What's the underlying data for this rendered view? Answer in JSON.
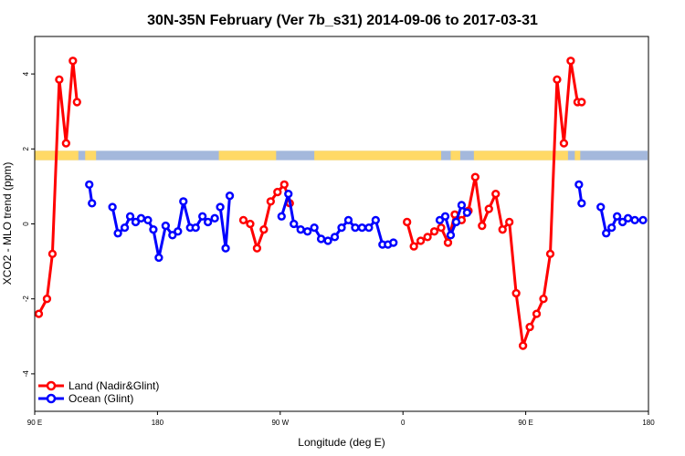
{
  "chart_data": {
    "type": "line",
    "title": "30N-35N February (Ver 7b_s31)   2014-09-06 to 2017-03-31",
    "xlabel": "Longitude (deg E)",
    "ylabel": "XCO2 - MLO trend (ppm)",
    "xlim": [
      90,
      540
    ],
    "ylim": [
      -5,
      5
    ],
    "x_ticks": [
      {
        "value": 90,
        "label": "90 E"
      },
      {
        "value": 180,
        "label": "180"
      },
      {
        "value": 270,
        "label": "90 W"
      },
      {
        "value": 360,
        "label": "0"
      },
      {
        "value": 450,
        "label": "90 E"
      },
      {
        "value": 540,
        "label": "180"
      }
    ],
    "y_ticks": [
      -4,
      -2,
      0,
      2,
      4
    ],
    "legend_position": "bottom-left",
    "land_fraction_band": {
      "y_range": [
        1.7,
        1.95
      ],
      "land_color": "#ffd966",
      "ocean_color": "#a4b8dc",
      "land_ranges": [
        [
          90,
          122
        ],
        [
          127,
          135
        ],
        [
          225,
          267
        ],
        [
          295,
          388
        ],
        [
          395,
          402
        ],
        [
          412,
          481
        ],
        [
          486,
          490
        ]
      ]
    },
    "series": [
      {
        "name": "Land (Nadir&Glint)",
        "color": "#ff0000",
        "segments": [
          {
            "x": [
              93,
              99,
              103,
              108,
              113,
              118,
              121
            ],
            "y": [
              -2.4,
              -2.0,
              -0.8,
              3.85,
              2.15,
              4.35,
              3.25
            ]
          },
          {
            "x": [
              243,
              248,
              253,
              258,
              263,
              268,
              273,
              277
            ],
            "y": [
              0.1,
              0.0,
              -0.65,
              -0.15,
              0.6,
              0.85,
              1.05,
              0.55
            ]
          },
          {
            "x": [
              363,
              368,
              373,
              378,
              383,
              388,
              393,
              398,
              403,
              408,
              413,
              418,
              423,
              428,
              433,
              438,
              443,
              448,
              453,
              458,
              463,
              468,
              473,
              478,
              483,
              488,
              491
            ],
            "y": [
              0.05,
              -0.6,
              -0.45,
              -0.35,
              -0.2,
              -0.1,
              -0.5,
              0.25,
              0.1,
              0.35,
              1.25,
              -0.05,
              0.4,
              0.8,
              -0.15,
              0.05,
              -1.85,
              -3.25,
              -2.75,
              -2.4,
              -2.0,
              -0.8,
              3.85,
              2.15,
              4.35,
              3.25,
              3.25
            ]
          }
        ]
      },
      {
        "name": "Ocean (Glint)",
        "color": "#0000ff",
        "segments": [
          {
            "x": [
              130,
              132
            ],
            "y": [
              1.05,
              0.55
            ]
          },
          {
            "x": [
              147,
              151,
              156,
              160,
              164,
              168,
              173,
              177,
              181,
              186,
              191,
              195,
              199,
              204,
              208,
              213,
              217,
              222
            ],
            "y": [
              0.45,
              -0.25,
              -0.1,
              0.2,
              0.05,
              0.15,
              0.1,
              -0.15,
              -0.9,
              -0.05,
              -0.3,
              -0.2,
              0.6,
              -0.1,
              -0.1,
              0.2,
              0.05,
              0.15
            ]
          },
          {
            "x": [
              226,
              230,
              233
            ],
            "y": [
              0.45,
              -0.65,
              0.75
            ]
          },
          {
            "x": [
              271,
              276,
              280,
              285,
              290,
              295,
              300,
              305,
              310,
              315,
              320,
              325,
              330,
              335,
              340,
              345,
              349,
              353
            ],
            "y": [
              0.2,
              0.8,
              0.0,
              -0.15,
              -0.2,
              -0.1,
              -0.4,
              -0.45,
              -0.35,
              -0.1,
              0.1,
              -0.1,
              -0.1,
              -0.1,
              0.1,
              -0.55,
              -0.55,
              -0.5
            ]
          },
          {
            "x": [
              387,
              391,
              395,
              399,
              403,
              407
            ],
            "y": [
              0.1,
              0.2,
              -0.3,
              0.05,
              0.5,
              0.3
            ]
          },
          {
            "x": [
              489,
              491
            ],
            "y": [
              1.05,
              0.55
            ]
          },
          {
            "x": [
              505,
              509,
              513,
              517,
              521,
              525,
              530,
              536
            ],
            "y": [
              0.45,
              -0.25,
              -0.1,
              0.2,
              0.05,
              0.15,
              0.1,
              0.1
            ]
          }
        ]
      }
    ]
  }
}
